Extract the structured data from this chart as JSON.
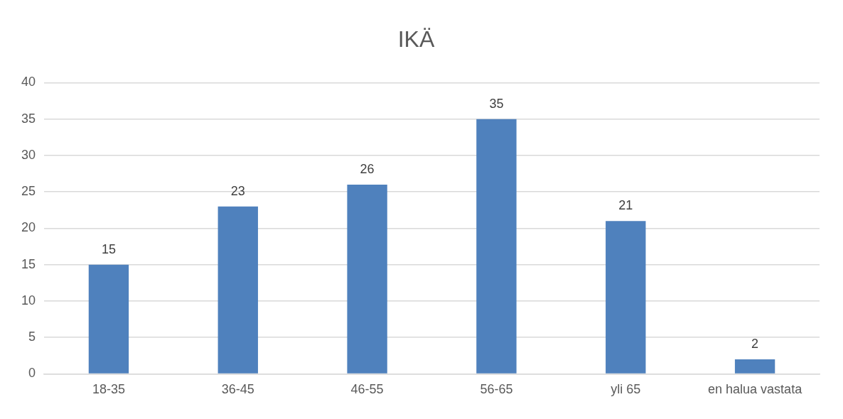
{
  "chart_data": {
    "type": "bar",
    "title": "IKÄ",
    "categories": [
      "18-35",
      "36-45",
      "46-55",
      "56-65",
      "yli 65",
      "en halua vastata"
    ],
    "values": [
      15,
      23,
      26,
      35,
      21,
      2
    ],
    "color": "#4f81bd",
    "ylim": [
      0,
      40
    ],
    "yticks": [
      0,
      5,
      10,
      15,
      20,
      25,
      30,
      35,
      40
    ],
    "grid": "y",
    "legend": false,
    "data_labels": true
  }
}
